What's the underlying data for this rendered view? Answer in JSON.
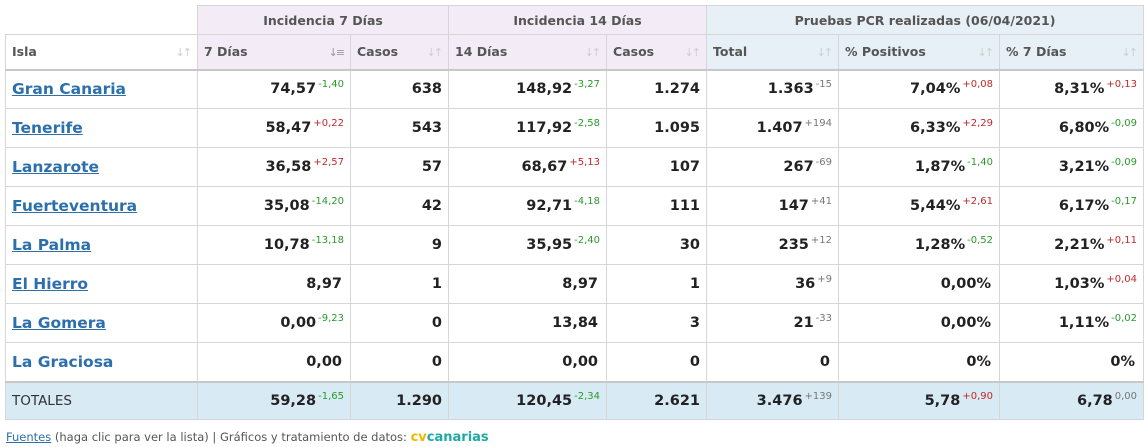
{
  "groups": {
    "inc7": "Incidencia 7 Días",
    "inc14": "Incidencia 14 Días",
    "pcr": "Pruebas PCR realizadas (06/04/2021)"
  },
  "headers": [
    "Isla",
    "7 Días",
    "Casos",
    "14 Días",
    "Casos",
    "Total",
    "% Positivos",
    "% 7 Días"
  ],
  "sort_icons": {
    "inactive": "↓↑",
    "active": "↓≡"
  },
  "rows": [
    {
      "isla": "Gran Canaria",
      "i7": "74,57",
      "i7d": "-1,40",
      "c7": "638",
      "i14": "148,92",
      "i14d": "-3,27",
      "c14": "1.274",
      "tot": "1.363",
      "totd": "-15",
      "pos": "7,04%",
      "posd": "+0,08",
      "p7": "8,31%",
      "p7d": "+0,13"
    },
    {
      "isla": "Tenerife",
      "i7": "58,47",
      "i7d": "+0,22",
      "c7": "543",
      "i14": "117,92",
      "i14d": "-2,58",
      "c14": "1.095",
      "tot": "1.407",
      "totd": "+194",
      "pos": "6,33%",
      "posd": "+2,29",
      "p7": "6,80%",
      "p7d": "-0,09"
    },
    {
      "isla": "Lanzarote",
      "i7": "36,58",
      "i7d": "+2,57",
      "c7": "57",
      "i14": "68,67",
      "i14d": "+5,13",
      "c14": "107",
      "tot": "267",
      "totd": "-69",
      "pos": "1,87%",
      "posd": "-1,40",
      "p7": "3,21%",
      "p7d": "-0,09"
    },
    {
      "isla": "Fuerteventura",
      "i7": "35,08",
      "i7d": "-14,20",
      "c7": "42",
      "i14": "92,71",
      "i14d": "-4,18",
      "c14": "111",
      "tot": "147",
      "totd": "+41",
      "pos": "5,44%",
      "posd": "+2,61",
      "p7": "6,17%",
      "p7d": "-0,17"
    },
    {
      "isla": "La Palma",
      "i7": "10,78",
      "i7d": "-13,18",
      "c7": "9",
      "i14": "35,95",
      "i14d": "-2,40",
      "c14": "30",
      "tot": "235",
      "totd": "+12",
      "pos": "1,28%",
      "posd": "-0,52",
      "p7": "2,21%",
      "p7d": "+0,11"
    },
    {
      "isla": "El Hierro",
      "i7": "8,97",
      "i7d": "",
      "c7": "1",
      "i14": "8,97",
      "i14d": "",
      "c14": "1",
      "tot": "36",
      "totd": "+9",
      "pos": "0,00%",
      "posd": "",
      "p7": "1,03%",
      "p7d": "+0,04"
    },
    {
      "isla": "La Gomera",
      "i7": "0,00",
      "i7d": "-9,23",
      "c7": "0",
      "i14": "13,84",
      "i14d": "",
      "c14": "3",
      "tot": "21",
      "totd": "-33",
      "pos": "0,00%",
      "posd": "",
      "p7": "1,11%",
      "p7d": "-0,02"
    },
    {
      "isla": "La Graciosa",
      "i7": "0,00",
      "i7d": "",
      "c7": "0",
      "i14": "0,00",
      "i14d": "",
      "c14": "0",
      "tot": "0",
      "totd": "",
      "pos": "0%",
      "posd": "",
      "p7": "0%",
      "p7d": ""
    }
  ],
  "totals": {
    "label": "TOTALES",
    "i7": "59,28",
    "i7d": "-1,65",
    "c7": "1.290",
    "i14": "120,45",
    "i14d": "-2,34",
    "c14": "2.621",
    "tot": "3.476",
    "totd": "+139",
    "pos": "5,78",
    "posd": "+0,90",
    "p7": "6,78",
    "p7d": "0,00"
  },
  "footer": {
    "link": "Fuentes",
    "text": " (haga clic para ver la lista) | Gráficos y tratamiento de datos: ",
    "brand_cv": "cv",
    "brand_canarias": "canarias"
  },
  "colors": {
    "negative_delta": "#2a9a2a",
    "positive_delta": "#c0292b",
    "neutral_delta": "#777777",
    "link": "#2c6fab",
    "totals_bg": "#d8eaf4",
    "incidence_header_bg": "#f3ecf6",
    "pcr_header_bg": "#e7f0f6"
  }
}
